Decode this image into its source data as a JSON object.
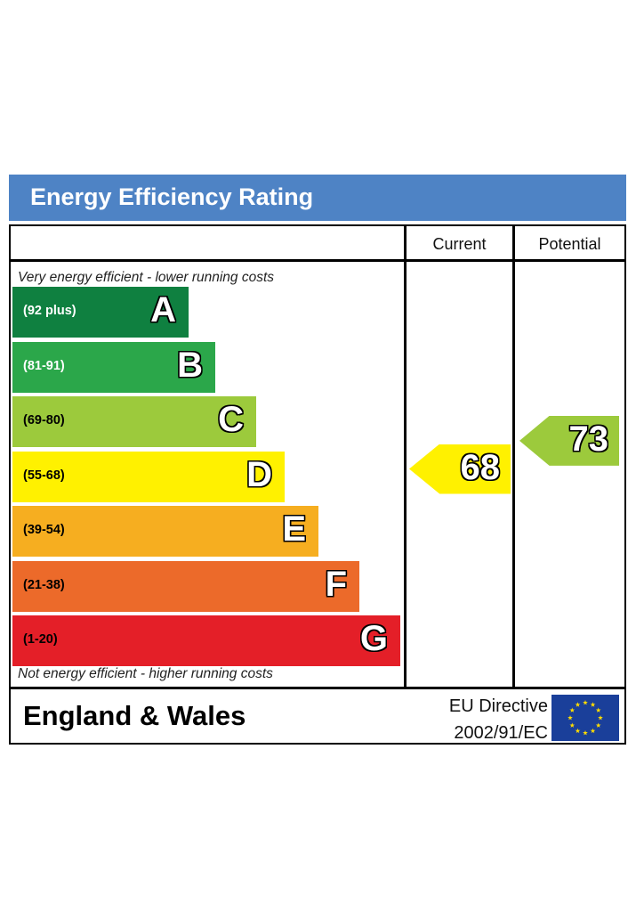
{
  "header": {
    "title": "Energy Efficiency Rating"
  },
  "columns": {
    "current": "Current",
    "potential": "Potential"
  },
  "captions": {
    "top": "Very energy efficient - lower running costs",
    "bottom": "Not energy efficient - higher running costs"
  },
  "footer": {
    "region": "England & Wales",
    "directive_line1": "EU Directive",
    "directive_line2": "2002/91/EC"
  },
  "chart_data": {
    "type": "bar",
    "bands": [
      {
        "letter": "A",
        "range": "(92 plus)",
        "color": "#0f8040",
        "text_color": "#ffffff"
      },
      {
        "letter": "B",
        "range": "(81-91)",
        "color": "#2ba74a",
        "text_color": "#ffffff"
      },
      {
        "letter": "C",
        "range": "(69-80)",
        "color": "#9cca3c",
        "text_color": "#000000"
      },
      {
        "letter": "D",
        "range": "(55-68)",
        "color": "#fff100",
        "text_color": "#000000"
      },
      {
        "letter": "E",
        "range": "(39-54)",
        "color": "#f6ae20",
        "text_color": "#000000"
      },
      {
        "letter": "F",
        "range": "(21-38)",
        "color": "#ec6a2a",
        "text_color": "#000000"
      },
      {
        "letter": "G",
        "range": "(1-20)",
        "color": "#e41f28",
        "text_color": "#000000"
      }
    ],
    "current": {
      "value": 68,
      "band": "D",
      "color": "#fff100"
    },
    "potential": {
      "value": 73,
      "band": "C",
      "color": "#9cca3c"
    }
  },
  "colors": {
    "header": "#4e83c5",
    "eu_flag": "#1a3f9a",
    "eu_stars": "#ffdd00"
  },
  "icons": {
    "flag": "eu-flag-icon"
  }
}
